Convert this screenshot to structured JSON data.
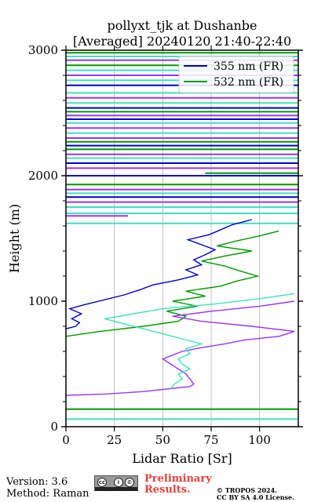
{
  "figure": {
    "title_line1": "pollyxt_tjk at Dushanbe",
    "title_line2": "[Averaged] 20240120 21:40-22:40",
    "footer_version": "Version: 3.6",
    "footer_method": "Method: Raman",
    "preliminary_line1": "Preliminary",
    "preliminary_line2": "Results.",
    "copyright_line1": "© TROPOS 2024.",
    "copyright_line2": "CC BY SA 4.0 License.",
    "preliminary_color": "#e8413a"
  },
  "chart_data": {
    "type": "line",
    "xlabel": "Lidar Ratio [Sr]",
    "ylabel": "Height (m)",
    "xlim": [
      0,
      120
    ],
    "ylim": [
      0,
      3000
    ],
    "xticks": [
      0,
      25,
      50,
      75,
      100
    ],
    "yticks": [
      0,
      1000,
      2000,
      3000
    ],
    "grid": "vertical",
    "legend_position": "top-right",
    "series": [
      {
        "name": "355 nm (FR)",
        "color": "#0000cc",
        "points": [
          [
            0,
            780
          ],
          [
            5,
            800
          ],
          [
            7,
            830
          ],
          [
            3,
            860
          ],
          [
            8,
            900
          ],
          [
            2,
            940
          ],
          [
            9,
            970
          ],
          [
            30,
            1050
          ],
          [
            38,
            1090
          ],
          [
            45,
            1130
          ],
          [
            58,
            1170
          ],
          [
            68,
            1210
          ],
          [
            62,
            1250
          ],
          [
            70,
            1290
          ],
          [
            66,
            1330
          ],
          [
            72,
            1370
          ],
          [
            77,
            1410
          ],
          [
            70,
            1450
          ],
          [
            63,
            1490
          ],
          [
            74,
            1530
          ],
          [
            80,
            1570
          ],
          [
            86,
            1610
          ],
          [
            96,
            1650
          ]
        ]
      },
      {
        "name": "532 nm (FR)",
        "color": "#009900",
        "points": [
          [
            0,
            720
          ],
          [
            18,
            760
          ],
          [
            40,
            800
          ],
          [
            58,
            840
          ],
          [
            62,
            880
          ],
          [
            52,
            920
          ],
          [
            68,
            960
          ],
          [
            55,
            1000
          ],
          [
            72,
            1040
          ],
          [
            62,
            1080
          ],
          [
            80,
            1120
          ],
          [
            88,
            1160
          ],
          [
            99,
            1200
          ],
          [
            90,
            1240
          ],
          [
            82,
            1280
          ],
          [
            70,
            1320
          ],
          [
            82,
            1360
          ],
          [
            96,
            1400
          ],
          [
            78,
            1440
          ],
          [
            88,
            1480
          ],
          [
            100,
            1520
          ],
          [
            110,
            1560
          ]
        ]
      },
      {
        "name": "",
        "color": "#9933ff",
        "points": [
          [
            0,
            250
          ],
          [
            20,
            260
          ],
          [
            40,
            280
          ],
          [
            52,
            300
          ],
          [
            64,
            320
          ],
          [
            66,
            340
          ],
          [
            64,
            380
          ],
          [
            62,
            420
          ],
          [
            58,
            460
          ],
          [
            54,
            500
          ],
          [
            50,
            540
          ],
          [
            55,
            570
          ],
          [
            60,
            600
          ],
          [
            70,
            630
          ],
          [
            82,
            660
          ],
          [
            92,
            690
          ],
          [
            110,
            720
          ],
          [
            118,
            760
          ],
          [
            96,
            800
          ],
          [
            70,
            840
          ],
          [
            55,
            880
          ],
          [
            75,
            920
          ],
          [
            100,
            960
          ],
          [
            118,
            1000
          ]
        ]
      },
      {
        "name": "",
        "color": "#40e0c0",
        "points": [
          [
            54,
            300
          ],
          [
            56,
            340
          ],
          [
            60,
            380
          ],
          [
            58,
            420
          ],
          [
            64,
            460
          ],
          [
            60,
            500
          ],
          [
            58,
            540
          ],
          [
            64,
            580
          ],
          [
            62,
            620
          ],
          [
            70,
            660
          ],
          [
            60,
            700
          ],
          [
            50,
            740
          ],
          [
            40,
            780
          ],
          [
            30,
            820
          ],
          [
            20,
            860
          ],
          [
            35,
            900
          ],
          [
            50,
            940
          ],
          [
            78,
            980
          ],
          [
            100,
            1020
          ],
          [
            118,
            1060
          ]
        ]
      }
    ],
    "horizontal_segments": [
      {
        "y": 140,
        "x1": 0,
        "x2": 120,
        "color": "#009900"
      },
      {
        "y": 60,
        "x1": 0,
        "x2": 120,
        "color": "#40e0c0"
      },
      {
        "y": 2000,
        "x1": 0,
        "x2": 120,
        "color": "#0000cc"
      },
      {
        "y": 2020,
        "x1": 72,
        "x2": 120,
        "color": "#009900"
      },
      {
        "y": 2060,
        "x1": 0,
        "x2": 120,
        "color": "#9933ff"
      },
      {
        "y": 2100,
        "x1": 0,
        "x2": 120,
        "color": "#0000cc"
      },
      {
        "y": 2140,
        "x1": 0,
        "x2": 120,
        "color": "#40e0c0"
      },
      {
        "y": 2170,
        "x1": 0,
        "x2": 120,
        "color": "#9933ff"
      },
      {
        "y": 2210,
        "x1": 0,
        "x2": 120,
        "color": "#009900"
      },
      {
        "y": 2240,
        "x1": 0,
        "x2": 120,
        "color": "#0000cc"
      },
      {
        "y": 2270,
        "x1": 0,
        "x2": 120,
        "color": "#009900"
      },
      {
        "y": 2300,
        "x1": 0,
        "x2": 120,
        "color": "#9933ff"
      },
      {
        "y": 2340,
        "x1": 0,
        "x2": 120,
        "color": "#40e0c0"
      },
      {
        "y": 2380,
        "x1": 0,
        "x2": 120,
        "color": "#9933ff"
      },
      {
        "y": 2420,
        "x1": 0,
        "x2": 120,
        "color": "#40e0c0"
      },
      {
        "y": 2450,
        "x1": 0,
        "x2": 120,
        "color": "#0000cc"
      },
      {
        "y": 2480,
        "x1": 0,
        "x2": 120,
        "color": "#9933ff"
      },
      {
        "y": 2510,
        "x1": 0,
        "x2": 120,
        "color": "#009900"
      },
      {
        "y": 2540,
        "x1": 0,
        "x2": 120,
        "color": "#0000cc"
      },
      {
        "y": 2580,
        "x1": 0,
        "x2": 120,
        "color": "#40e0c0"
      },
      {
        "y": 2620,
        "x1": 0,
        "x2": 120,
        "color": "#9933ff"
      },
      {
        "y": 2660,
        "x1": 0,
        "x2": 120,
        "color": "#40e0c0"
      },
      {
        "y": 2720,
        "x1": 0,
        "x2": 120,
        "color": "#0000cc"
      },
      {
        "y": 2760,
        "x1": 0,
        "x2": 120,
        "color": "#40e0c0"
      },
      {
        "y": 2800,
        "x1": 0,
        "x2": 120,
        "color": "#9933ff"
      },
      {
        "y": 2840,
        "x1": 0,
        "x2": 120,
        "color": "#40e0c0"
      },
      {
        "y": 2880,
        "x1": 0,
        "x2": 120,
        "color": "#009900"
      },
      {
        "y": 2920,
        "x1": 0,
        "x2": 120,
        "color": "#9933ff"
      },
      {
        "y": 2950,
        "x1": 0,
        "x2": 120,
        "color": "#40e0c0"
      },
      {
        "y": 2980,
        "x1": 0,
        "x2": 120,
        "color": "#009900"
      },
      {
        "y": 1930,
        "x1": 0,
        "x2": 120,
        "color": "#009900"
      },
      {
        "y": 1890,
        "x1": 0,
        "x2": 120,
        "color": "#9933ff"
      },
      {
        "y": 1860,
        "x1": 0,
        "x2": 120,
        "color": "#40e0c0"
      },
      {
        "y": 1830,
        "x1": 0,
        "x2": 120,
        "color": "#0000cc"
      },
      {
        "y": 1790,
        "x1": 0,
        "x2": 120,
        "color": "#9933ff"
      },
      {
        "y": 1750,
        "x1": 0,
        "x2": 120,
        "color": "#40e0c0"
      },
      {
        "y": 1700,
        "x1": 0,
        "x2": 120,
        "color": "#40e0c0"
      },
      {
        "y": 1680,
        "x1": 0,
        "x2": 32,
        "color": "#9933ff"
      },
      {
        "y": 1620,
        "x1": 0,
        "x2": 120,
        "color": "#40e0c0"
      }
    ]
  }
}
